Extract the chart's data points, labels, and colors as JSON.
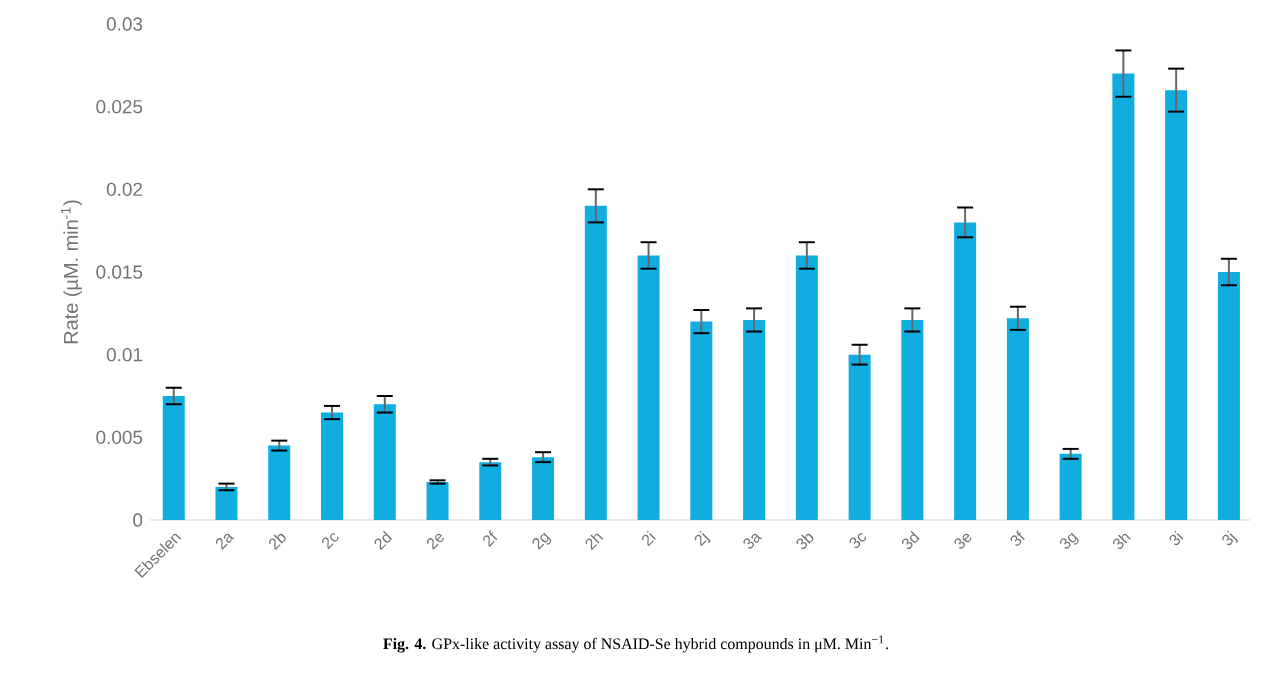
{
  "chart_data": {
    "type": "bar",
    "ylabel": "Rate (µM. min$^{-1}$)",
    "categories": [
      "Ebselen",
      "2a",
      "2b",
      "2c",
      "2d",
      "2e",
      "2f",
      "2g",
      "2h",
      "2i",
      "2j",
      "3a",
      "3b",
      "3c",
      "3d",
      "3e",
      "3f",
      "3g",
      "3h",
      "3i",
      "3j"
    ],
    "values": [
      0.0075,
      0.002,
      0.0045,
      0.0065,
      0.007,
      0.0023,
      0.0035,
      0.0038,
      0.019,
      0.016,
      0.012,
      0.0121,
      0.016,
      0.01,
      0.0121,
      0.018,
      0.0122,
      0.004,
      0.027,
      0.026,
      0.015
    ],
    "errors": [
      0.0005,
      0.0002,
      0.0003,
      0.0004,
      0.0005,
      0.0001,
      0.0002,
      0.0003,
      0.001,
      0.0008,
      0.0007,
      0.0007,
      0.0008,
      0.0006,
      0.0007,
      0.0009,
      0.0007,
      0.0003,
      0.0014,
      0.0013,
      0.0008
    ],
    "color": "#12ade0",
    "ylim": [
      0,
      0.03
    ],
    "yticks": [
      0,
      0.005,
      0.01,
      0.015,
      0.02,
      0.025,
      0.03
    ],
    "grid": false,
    "annotations": [
      "**Fig. 4.** GPx-like activity assay of NSAID-Se hybrid compounds in μM. Min$^{−1}$."
    ]
  }
}
